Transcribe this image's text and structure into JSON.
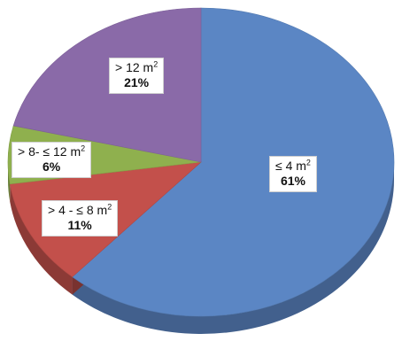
{
  "chart_data": {
    "type": "pie",
    "title": "",
    "style": "3d",
    "slices": [
      {
        "label": "≤ 4 m",
        "sup": "2",
        "percent_label": "61%",
        "value": 61,
        "color": "#5b86c4"
      },
      {
        "label": "> 4 - ≤ 8 m",
        "sup": "2",
        "percent_label": "11%",
        "value": 11,
        "color": "#c3504b"
      },
      {
        "label": "> 8- ≤ 12 m",
        "sup": "2",
        "percent_label": "6%",
        "value": 6,
        "color": "#8fb04e"
      },
      {
        "label": "> 12 m",
        "sup": "2",
        "percent_label": "21%",
        "value": 21,
        "color": "#8a6aa8"
      }
    ]
  }
}
